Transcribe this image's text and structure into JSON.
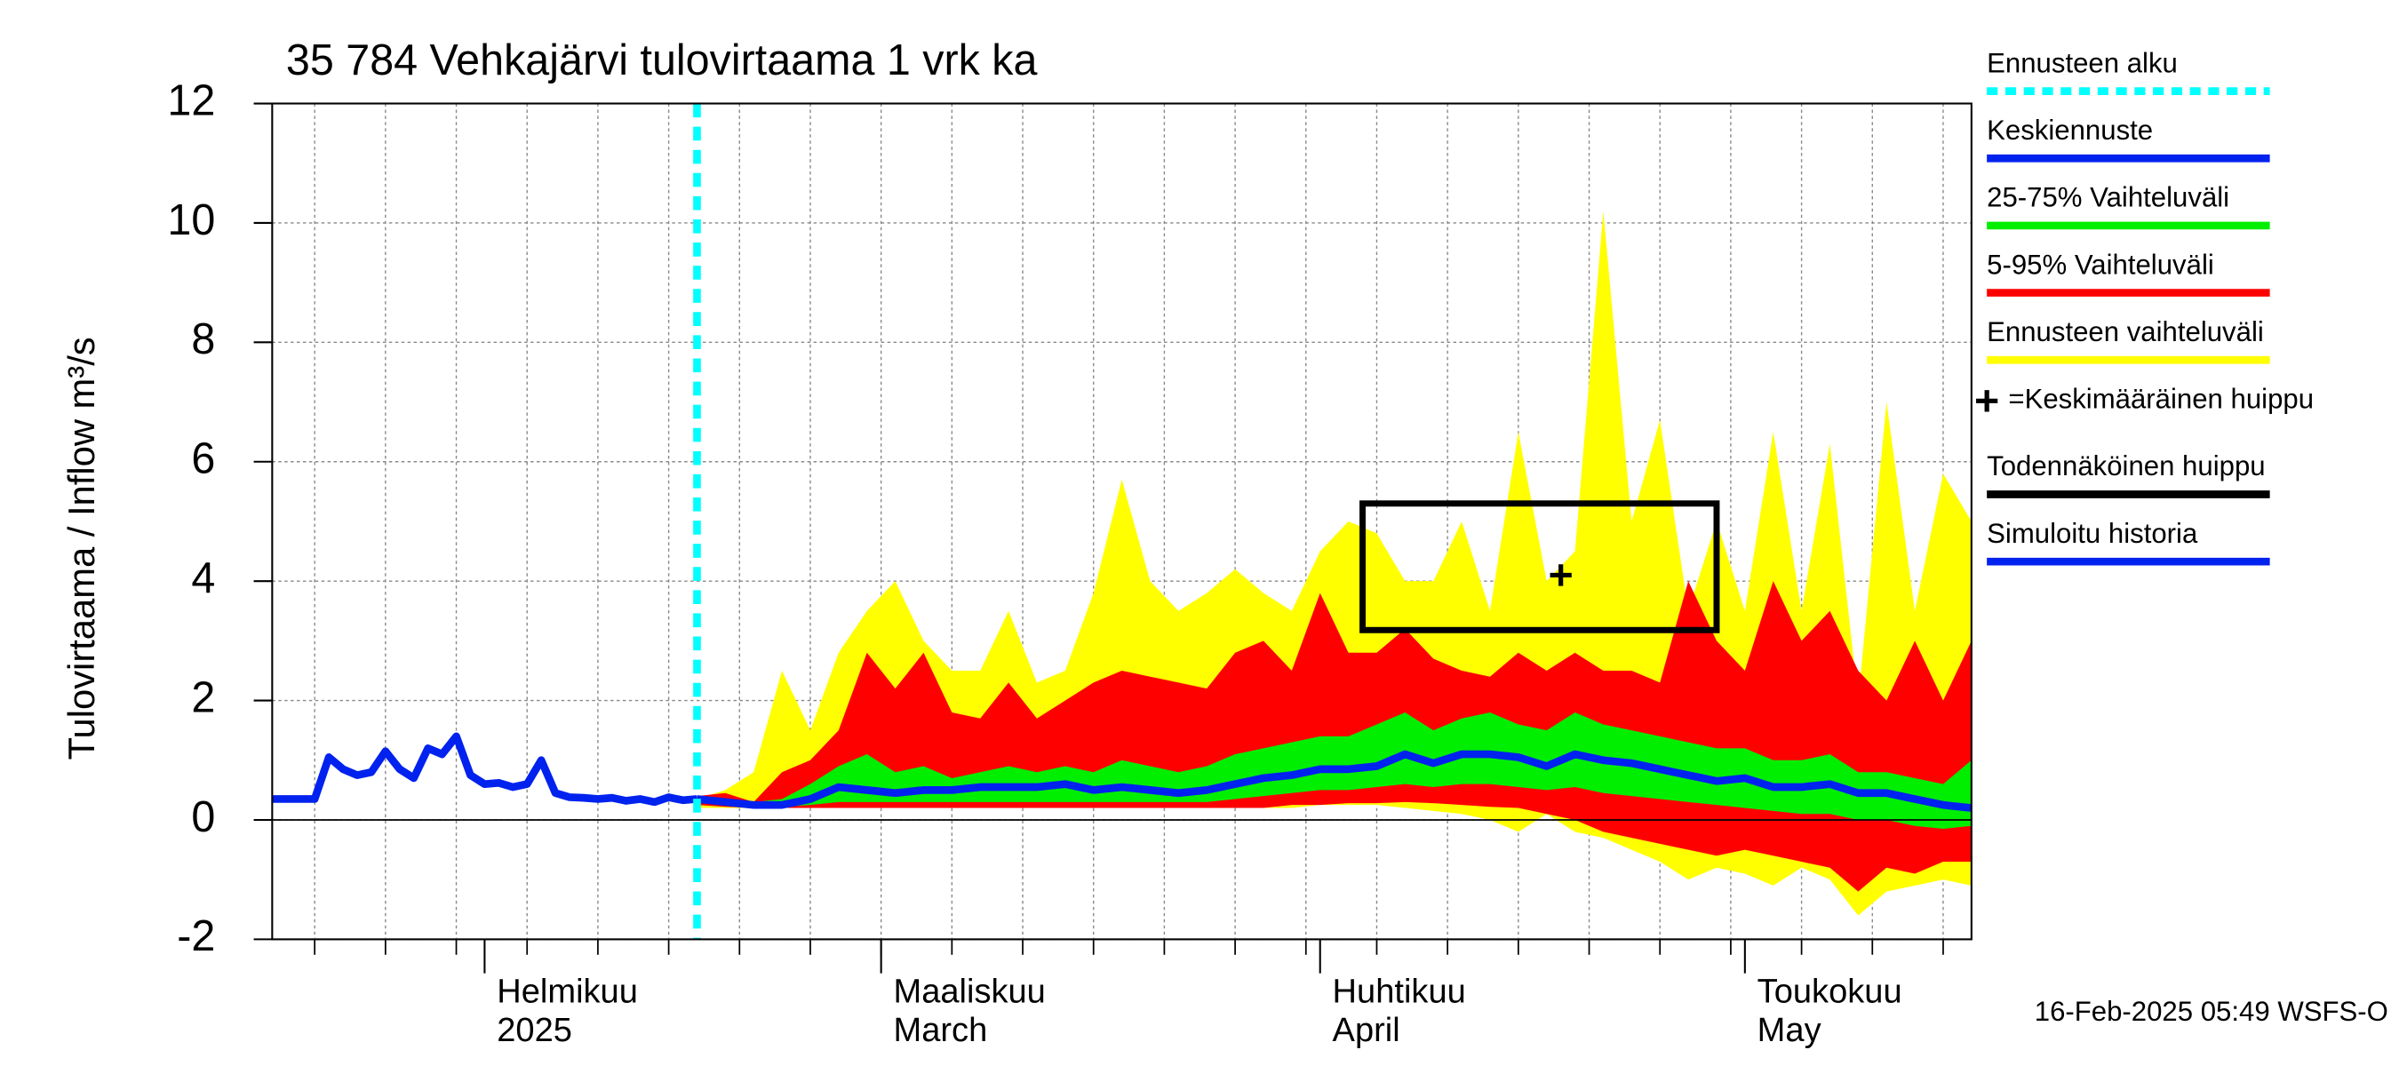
{
  "chart_data": {
    "type": "band-forecast",
    "title": "35 784 Vehkajärvi tulovirtaama 1 vrk ka",
    "ylabel": "Tulovirtaama / Inflow    m³/s",
    "footer": "16-Feb-2025 05:49 WSFS-O",
    "xlim": [
      0,
      120
    ],
    "ylim": [
      -2,
      12
    ],
    "yticks": [
      -2,
      0,
      2,
      4,
      6,
      8,
      10,
      12
    ],
    "xticks": [
      {
        "value": 15,
        "label": "Helmikuu"
      },
      {
        "value": 43,
        "label": "Maaliskuu"
      },
      {
        "value": 74,
        "label": "Huhtikuu"
      },
      {
        "value": 104,
        "label": "Toukokuu"
      }
    ],
    "xtick_sublabels": [
      "2025",
      "March",
      "April",
      "May"
    ],
    "xgrid": [
      3,
      8,
      13,
      18,
      23,
      28,
      33,
      38,
      43,
      48,
      53,
      58,
      63,
      68,
      73,
      78,
      83,
      88,
      93,
      98,
      103,
      108,
      113,
      118
    ],
    "grid": true,
    "forecast_start": 30,
    "peak_box": {
      "x": [
        77,
        102
      ],
      "y": [
        3.18,
        5.3
      ]
    },
    "mean_peak": {
      "x": 91,
      "y": 4.1
    },
    "forecast_x": [
      30,
      32,
      34,
      36,
      38,
      40,
      42,
      44,
      46,
      48,
      50,
      52,
      54,
      56,
      58,
      60,
      62,
      64,
      66,
      68,
      70,
      72,
      74,
      76,
      78,
      80,
      82,
      84,
      86,
      88,
      90,
      92,
      94,
      96,
      98,
      100,
      102,
      104,
      106,
      108,
      110,
      112,
      114,
      116,
      118,
      120
    ],
    "bands": [
      {
        "color": "#ffff00",
        "upper": [
          0.35,
          0.5,
          0.8,
          2.5,
          1.5,
          2.8,
          3.5,
          4.0,
          3.0,
          2.5,
          2.5,
          3.5,
          2.3,
          2.5,
          3.8,
          5.7,
          4.0,
          3.5,
          3.8,
          4.2,
          3.8,
          3.5,
          4.5,
          5.0,
          4.8,
          4.0,
          4.0,
          5.0,
          3.5,
          6.5,
          4.0,
          4.5,
          10.2,
          5.0,
          6.7,
          3.5,
          5.0,
          3.5,
          6.5,
          3.5,
          6.3,
          2.0,
          7.0,
          3.5,
          5.8,
          5.0
        ],
        "lower": [
          0.2,
          0.2,
          0.2,
          0.2,
          0.2,
          0.2,
          0.2,
          0.2,
          0.2,
          0.2,
          0.2,
          0.2,
          0.2,
          0.2,
          0.2,
          0.2,
          0.2,
          0.2,
          0.2,
          0.2,
          0.2,
          0.2,
          0.25,
          0.25,
          0.25,
          0.2,
          0.15,
          0.1,
          0,
          -0.2,
          0.1,
          -0.2,
          -0.3,
          -0.5,
          -0.7,
          -1.0,
          -0.8,
          -0.9,
          -1.1,
          -0.8,
          -1.0,
          -1.6,
          -1.2,
          -1.1,
          -1.0,
          -1.1
        ]
      },
      {
        "color": "#ff0000",
        "upper": [
          0.4,
          0.45,
          0.3,
          0.8,
          1.0,
          1.5,
          2.8,
          2.2,
          2.8,
          1.8,
          1.7,
          2.3,
          1.7,
          2.0,
          2.3,
          2.5,
          2.4,
          2.3,
          2.2,
          2.8,
          3.0,
          2.5,
          3.8,
          2.8,
          2.8,
          3.2,
          2.7,
          2.5,
          2.4,
          2.8,
          2.5,
          2.8,
          2.5,
          2.5,
          2.3,
          4.0,
          3.0,
          2.5,
          4.0,
          3.0,
          3.5,
          2.5,
          2.0,
          3.0,
          2.0,
          3.0
        ],
        "lower": [
          0.25,
          0.22,
          0.2,
          0.2,
          0.2,
          0.2,
          0.2,
          0.2,
          0.2,
          0.2,
          0.2,
          0.2,
          0.2,
          0.2,
          0.2,
          0.2,
          0.2,
          0.2,
          0.2,
          0.2,
          0.2,
          0.25,
          0.25,
          0.28,
          0.28,
          0.3,
          0.28,
          0.25,
          0.22,
          0.2,
          0.1,
          0,
          -0.2,
          -0.3,
          -0.4,
          -0.5,
          -0.6,
          -0.5,
          -0.6,
          -0.7,
          -0.8,
          -1.2,
          -0.8,
          -0.9,
          -0.7,
          -0.7
        ]
      },
      {
        "color": "#00ee00",
        "upper": [
          0.35,
          0.35,
          0.3,
          0.35,
          0.6,
          0.9,
          1.1,
          0.8,
          0.9,
          0.7,
          0.8,
          0.9,
          0.8,
          0.9,
          0.8,
          1.0,
          0.9,
          0.8,
          0.9,
          1.1,
          1.2,
          1.3,
          1.4,
          1.4,
          1.6,
          1.8,
          1.5,
          1.7,
          1.8,
          1.6,
          1.5,
          1.8,
          1.6,
          1.5,
          1.4,
          1.3,
          1.2,
          1.2,
          1.0,
          1.0,
          1.1,
          0.8,
          0.8,
          0.7,
          0.6,
          1.0
        ],
        "lower": [
          0.3,
          0.25,
          0.22,
          0.22,
          0.25,
          0.3,
          0.3,
          0.3,
          0.3,
          0.3,
          0.3,
          0.3,
          0.3,
          0.3,
          0.3,
          0.3,
          0.3,
          0.3,
          0.3,
          0.35,
          0.4,
          0.45,
          0.5,
          0.5,
          0.55,
          0.6,
          0.55,
          0.6,
          0.6,
          0.55,
          0.5,
          0.55,
          0.45,
          0.4,
          0.35,
          0.3,
          0.25,
          0.2,
          0.15,
          0.1,
          0.1,
          0,
          0,
          -0.1,
          -0.15,
          -0.1
        ]
      }
    ],
    "median": {
      "color": "#0022ee",
      "values": [
        0.35,
        0.3,
        0.25,
        0.25,
        0.35,
        0.55,
        0.5,
        0.45,
        0.5,
        0.5,
        0.55,
        0.55,
        0.55,
        0.6,
        0.5,
        0.55,
        0.5,
        0.45,
        0.5,
        0.6,
        0.7,
        0.75,
        0.85,
        0.85,
        0.9,
        1.1,
        0.95,
        1.1,
        1.1,
        1.05,
        0.9,
        1.1,
        1.0,
        0.95,
        0.85,
        0.75,
        0.65,
        0.7,
        0.55,
        0.55,
        0.6,
        0.45,
        0.45,
        0.35,
        0.25,
        0.2
      ]
    },
    "history": {
      "color": "#0022ee",
      "x": [
        0,
        1,
        2,
        3,
        4,
        5,
        6,
        7,
        8,
        9,
        10,
        11,
        12,
        13,
        14,
        15,
        16,
        17,
        18,
        19,
        20,
        21,
        22,
        23,
        24,
        25,
        26,
        27,
        28,
        29,
        30
      ],
      "values": [
        0.35,
        0.35,
        0.35,
        0.35,
        1.05,
        0.85,
        0.75,
        0.8,
        1.15,
        0.85,
        0.7,
        1.2,
        1.1,
        1.4,
        0.75,
        0.6,
        0.62,
        0.55,
        0.6,
        1.0,
        0.45,
        0.38,
        0.37,
        0.35,
        0.37,
        0.32,
        0.35,
        0.3,
        0.38,
        0.33,
        0.35
      ]
    },
    "legend": [
      {
        "label": "Ennusteen alku",
        "color": "#00ffff"
      },
      {
        "label": "Keskiennuste",
        "color": "#0022ee"
      },
      {
        "label": "25-75% Vaihteluväli",
        "color": "#00ee00"
      },
      {
        "label": "5-95% Vaihteluväli",
        "color": "#ff0000"
      },
      {
        "label": "Ennusteen vaihteluväli",
        "color": "#ffff00"
      },
      {
        "label": "=Keskimääräinen huippu",
        "color": "#000000"
      },
      {
        "label": "Todennäköinen huippu",
        "color": "#000000"
      },
      {
        "label": "Simuloitu historia",
        "color": "#0022ee"
      }
    ]
  }
}
